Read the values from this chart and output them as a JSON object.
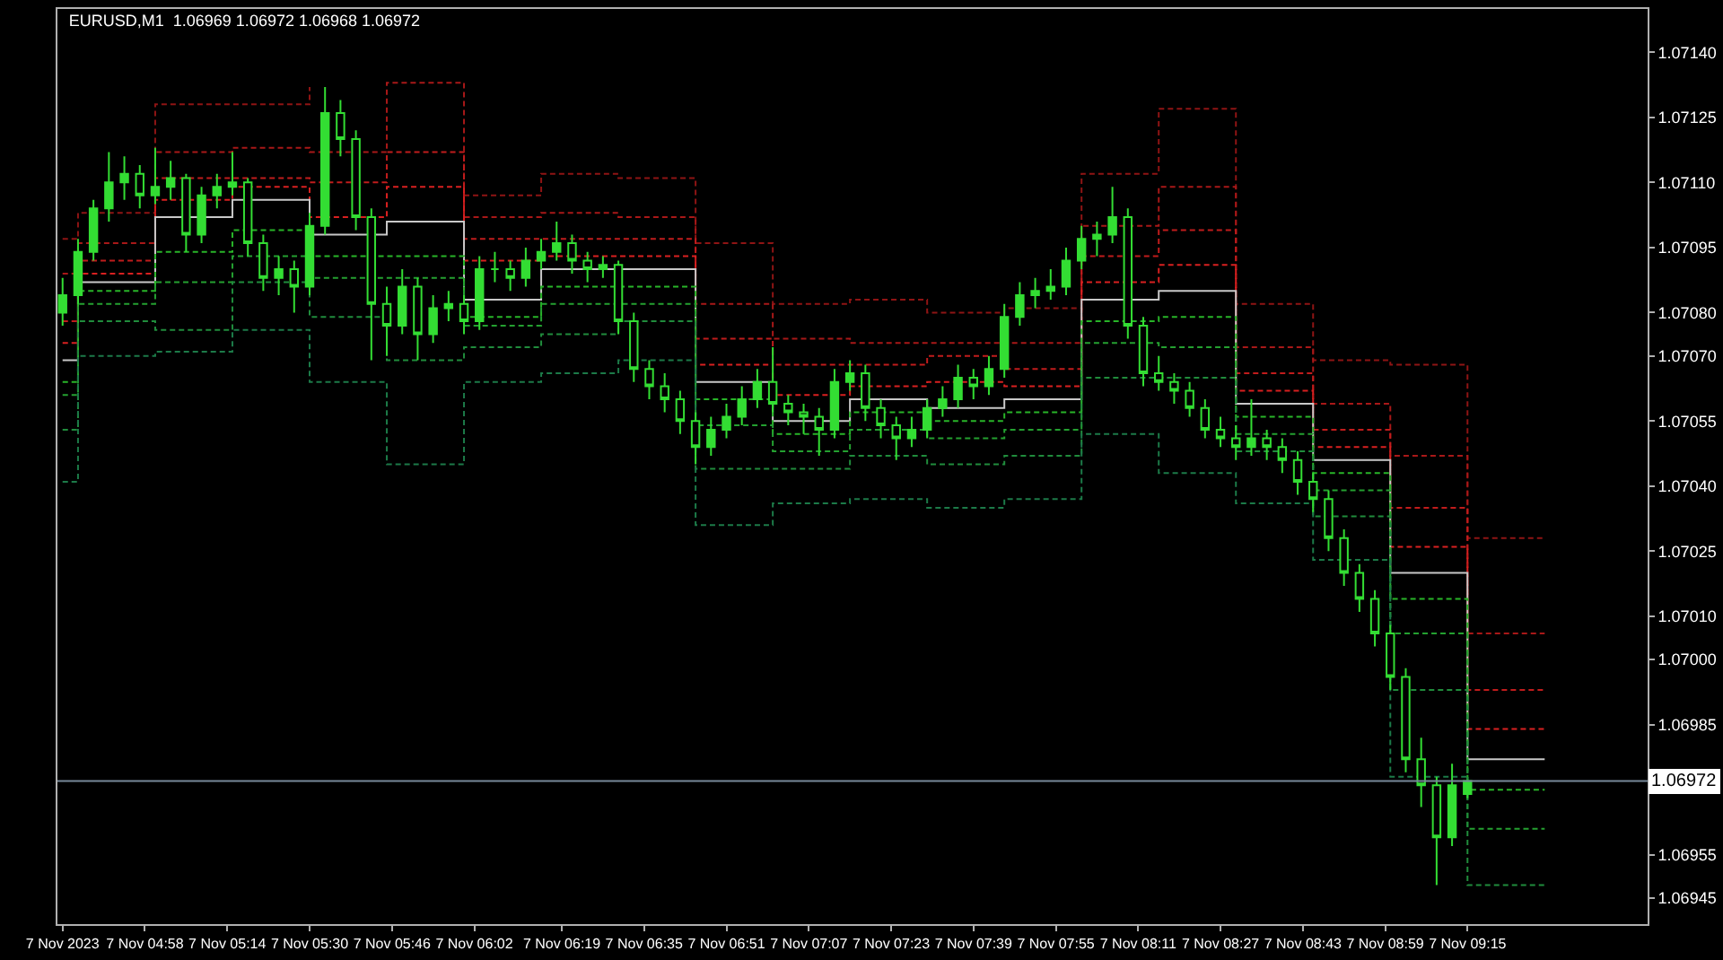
{
  "chart_data": {
    "type": "candlestick",
    "title": "EURUSD,M1  1.06969 1.06972 1.06968 1.06972",
    "color": "#33dd33",
    "x": [
      "2023-11-07T04:42",
      "2023-11-07T04:45",
      "2023-11-07T04:48",
      "2023-11-07T04:51",
      "2023-11-07T04:54",
      "2023-11-07T04:57",
      "2023-11-07T05:00",
      "2023-11-07T05:03",
      "2023-11-07T05:06",
      "2023-11-07T05:09",
      "2023-11-07T05:12",
      "2023-11-07T05:15",
      "2023-11-07T05:18",
      "2023-11-07T05:21",
      "2023-11-07T05:24",
      "2023-11-07T05:27",
      "2023-11-07T05:30",
      "2023-11-07T05:33",
      "2023-11-07T05:36",
      "2023-11-07T05:39",
      "2023-11-07T05:42",
      "2023-11-07T05:45",
      "2023-11-07T05:48",
      "2023-11-07T05:51",
      "2023-11-07T05:54",
      "2023-11-07T05:57",
      "2023-11-07T06:00",
      "2023-11-07T06:03",
      "2023-11-07T06:06",
      "2023-11-07T06:09",
      "2023-11-07T06:12",
      "2023-11-07T06:15",
      "2023-11-07T06:18",
      "2023-11-07T06:21",
      "2023-11-07T06:24",
      "2023-11-07T06:27",
      "2023-11-07T06:30",
      "2023-11-07T06:33",
      "2023-11-07T06:36",
      "2023-11-07T06:39",
      "2023-11-07T06:42",
      "2023-11-07T06:45",
      "2023-11-07T06:48",
      "2023-11-07T06:51",
      "2023-11-07T06:54",
      "2023-11-07T06:57",
      "2023-11-07T07:00",
      "2023-11-07T07:03",
      "2023-11-07T07:06",
      "2023-11-07T07:09",
      "2023-11-07T07:12",
      "2023-11-07T07:15",
      "2023-11-07T07:18",
      "2023-11-07T07:21",
      "2023-11-07T07:24",
      "2023-11-07T07:27",
      "2023-11-07T07:30",
      "2023-11-07T07:33",
      "2023-11-07T07:36",
      "2023-11-07T07:39",
      "2023-11-07T07:42",
      "2023-11-07T07:45",
      "2023-11-07T07:48",
      "2023-11-07T07:51",
      "2023-11-07T07:54",
      "2023-11-07T07:57",
      "2023-11-07T08:00",
      "2023-11-07T08:03",
      "2023-11-07T08:06",
      "2023-11-07T08:09",
      "2023-11-07T08:12",
      "2023-11-07T08:15",
      "2023-11-07T08:18",
      "2023-11-07T08:21",
      "2023-11-07T08:24",
      "2023-11-07T08:27",
      "2023-11-07T08:30",
      "2023-11-07T08:33",
      "2023-11-07T08:36",
      "2023-11-07T08:39",
      "2023-11-07T08:42",
      "2023-11-07T08:45",
      "2023-11-07T08:48",
      "2023-11-07T08:51",
      "2023-11-07T08:54",
      "2023-11-07T08:57",
      "2023-11-07T09:00",
      "2023-11-07T09:03",
      "2023-11-07T09:06",
      "2023-11-07T09:09",
      "2023-11-07T09:12",
      "2023-11-07T09:15"
    ],
    "ohlc": [
      [
        1.0708,
        1.07088,
        1.07077,
        1.07084
      ],
      [
        1.07084,
        1.07097,
        1.07082,
        1.07094
      ],
      [
        1.07094,
        1.07106,
        1.07092,
        1.07104
      ],
      [
        1.07104,
        1.07117,
        1.07101,
        1.0711
      ],
      [
        1.0711,
        1.07116,
        1.07106,
        1.07112
      ],
      [
        1.07112,
        1.07114,
        1.07104,
        1.07107
      ],
      [
        1.07107,
        1.07118,
        1.07105,
        1.07109
      ],
      [
        1.07109,
        1.07115,
        1.07106,
        1.07111
      ],
      [
        1.07111,
        1.07112,
        1.07094,
        1.07098
      ],
      [
        1.07098,
        1.07109,
        1.07096,
        1.07107
      ],
      [
        1.07107,
        1.07112,
        1.07104,
        1.07109
      ],
      [
        1.07109,
        1.07117,
        1.07107,
        1.0711
      ],
      [
        1.0711,
        1.07111,
        1.07093,
        1.07096
      ],
      [
        1.07096,
        1.07098,
        1.07085,
        1.07088
      ],
      [
        1.07088,
        1.07093,
        1.07084,
        1.0709
      ],
      [
        1.0709,
        1.07092,
        1.0708,
        1.07086
      ],
      [
        1.07086,
        1.07103,
        1.07084,
        1.071
      ],
      [
        1.071,
        1.07132,
        1.07098,
        1.07126
      ],
      [
        1.07126,
        1.07129,
        1.07116,
        1.0712
      ],
      [
        1.0712,
        1.07122,
        1.07099,
        1.07102
      ],
      [
        1.07102,
        1.07104,
        1.07069,
        1.07082
      ],
      [
        1.07082,
        1.07086,
        1.0707,
        1.07077
      ],
      [
        1.07077,
        1.0709,
        1.07075,
        1.07086
      ],
      [
        1.07086,
        1.07088,
        1.07069,
        1.07075
      ],
      [
        1.07075,
        1.07084,
        1.07073,
        1.07081
      ],
      [
        1.07081,
        1.07085,
        1.07078,
        1.07082
      ],
      [
        1.07082,
        1.07084,
        1.07075,
        1.07078
      ],
      [
        1.07078,
        1.07093,
        1.07076,
        1.0709
      ],
      [
        1.0709,
        1.07094,
        1.07087,
        1.0709
      ],
      [
        1.0709,
        1.07092,
        1.07085,
        1.07088
      ],
      [
        1.07088,
        1.07095,
        1.07086,
        1.07092
      ],
      [
        1.07092,
        1.07097,
        1.0709,
        1.07094
      ],
      [
        1.07094,
        1.07101,
        1.07092,
        1.07096
      ],
      [
        1.07096,
        1.07098,
        1.07089,
        1.07092
      ],
      [
        1.07092,
        1.07094,
        1.07087,
        1.0709
      ],
      [
        1.0709,
        1.07093,
        1.07088,
        1.07091
      ],
      [
        1.07091,
        1.07092,
        1.07075,
        1.07078
      ],
      [
        1.07078,
        1.0708,
        1.07064,
        1.07067
      ],
      [
        1.07067,
        1.07069,
        1.0706,
        1.07063
      ],
      [
        1.07063,
        1.07066,
        1.07057,
        1.0706
      ],
      [
        1.0706,
        1.07062,
        1.07052,
        1.07055
      ],
      [
        1.07055,
        1.07057,
        1.07045,
        1.07049
      ],
      [
        1.07049,
        1.07056,
        1.07047,
        1.07053
      ],
      [
        1.07053,
        1.07059,
        1.07051,
        1.07056
      ],
      [
        1.07056,
        1.07063,
        1.07054,
        1.0706
      ],
      [
        1.0706,
        1.07067,
        1.07058,
        1.07064
      ],
      [
        1.07064,
        1.07072,
        1.07057,
        1.07059
      ],
      [
        1.07059,
        1.07061,
        1.07054,
        1.07057
      ],
      [
        1.07057,
        1.07059,
        1.07052,
        1.07056
      ],
      [
        1.07056,
        1.07058,
        1.07047,
        1.07053
      ],
      [
        1.07053,
        1.07067,
        1.07051,
        1.07064
      ],
      [
        1.07064,
        1.07069,
        1.07062,
        1.07066
      ],
      [
        1.07066,
        1.07068,
        1.07055,
        1.07058
      ],
      [
        1.07058,
        1.0706,
        1.07051,
        1.07054
      ],
      [
        1.07054,
        1.07056,
        1.07046,
        1.07051
      ],
      [
        1.07051,
        1.07056,
        1.07049,
        1.07053
      ],
      [
        1.07053,
        1.0706,
        1.07051,
        1.07058
      ],
      [
        1.07058,
        1.07063,
        1.07056,
        1.0706
      ],
      [
        1.0706,
        1.07068,
        1.07058,
        1.07065
      ],
      [
        1.07065,
        1.07067,
        1.0706,
        1.07063
      ],
      [
        1.07063,
        1.0707,
        1.07061,
        1.07067
      ],
      [
        1.07067,
        1.07082,
        1.07065,
        1.07079
      ],
      [
        1.07079,
        1.07087,
        1.07077,
        1.07084
      ],
      [
        1.07084,
        1.07088,
        1.07081,
        1.07085
      ],
      [
        1.07085,
        1.0709,
        1.07083,
        1.07086
      ],
      [
        1.07086,
        1.07095,
        1.07084,
        1.07092
      ],
      [
        1.07092,
        1.071,
        1.0709,
        1.07097
      ],
      [
        1.07097,
        1.07101,
        1.07093,
        1.07098
      ],
      [
        1.07098,
        1.07109,
        1.07096,
        1.07102
      ],
      [
        1.07102,
        1.07104,
        1.07074,
        1.07077
      ],
      [
        1.07077,
        1.07079,
        1.07063,
        1.07066
      ],
      [
        1.07066,
        1.0707,
        1.07062,
        1.07064
      ],
      [
        1.07064,
        1.07066,
        1.07059,
        1.07062
      ],
      [
        1.07062,
        1.07064,
        1.07056,
        1.07058
      ],
      [
        1.07058,
        1.0706,
        1.07051,
        1.07053
      ],
      [
        1.07053,
        1.07056,
        1.07049,
        1.07051
      ],
      [
        1.07051,
        1.07054,
        1.07046,
        1.07049
      ],
      [
        1.07049,
        1.0706,
        1.07047,
        1.07051
      ],
      [
        1.07051,
        1.07053,
        1.07046,
        1.07049
      ],
      [
        1.07049,
        1.07051,
        1.07043,
        1.07046
      ],
      [
        1.07046,
        1.07048,
        1.07038,
        1.07041
      ],
      [
        1.07041,
        1.07043,
        1.07034,
        1.07037
      ],
      [
        1.07037,
        1.07039,
        1.07025,
        1.07028
      ],
      [
        1.07028,
        1.0703,
        1.07017,
        1.0702
      ],
      [
        1.0702,
        1.07022,
        1.07011,
        1.07014
      ],
      [
        1.07014,
        1.07016,
        1.07003,
        1.07006
      ],
      [
        1.07006,
        1.07008,
        1.06993,
        1.06996
      ],
      [
        1.06996,
        1.06998,
        1.06974,
        1.06977
      ],
      [
        1.06977,
        1.06982,
        1.06966,
        1.06971
      ],
      [
        1.06971,
        1.06973,
        1.06948,
        1.06959
      ],
      [
        1.06959,
        1.06976,
        1.06957,
        1.06971
      ],
      [
        1.06969,
        1.06972,
        1.06968,
        1.06972
      ]
    ],
    "series": [
      {
        "type": "step",
        "color": "#8e1414",
        "x": [
          "2023-11-07T04:42",
          "2023-11-07T04:45",
          "2023-11-07T05:00",
          "2023-11-07T05:15",
          "2023-11-07T05:30",
          "2023-11-07T05:45",
          "2023-11-07T06:00",
          "2023-11-07T06:15",
          "2023-11-07T06:30",
          "2023-11-07T06:45",
          "2023-11-07T07:00",
          "2023-11-07T07:15",
          "2023-11-07T07:30",
          "2023-11-07T07:45",
          "2023-11-07T08:00",
          "2023-11-07T08:15",
          "2023-11-07T08:30",
          "2023-11-07T08:45",
          "2023-11-07T09:00",
          "2023-11-07T09:15",
          "2023-11-07T09:30"
        ],
        "line_style": "dashed",
        "values": [
          1.07097,
          1.07103,
          1.07128,
          1.07128,
          1.07132,
          null,
          1.07107,
          1.07112,
          1.07111,
          1.07096,
          1.07082,
          1.07083,
          1.0708,
          1.07081,
          1.07112,
          1.07127,
          1.07082,
          1.07069,
          1.07068,
          1.07028,
          1.07028
        ]
      },
      {
        "type": "step",
        "color": "#a81818",
        "x": [
          "2023-11-07T04:42",
          "2023-11-07T04:45",
          "2023-11-07T05:00",
          "2023-11-07T05:15",
          "2023-11-07T05:30",
          "2023-11-07T05:45",
          "2023-11-07T06:00",
          "2023-11-07T06:15",
          "2023-11-07T06:30",
          "2023-11-07T06:45",
          "2023-11-07T07:00",
          "2023-11-07T07:15",
          "2023-11-07T07:30",
          "2023-11-07T07:45",
          "2023-11-07T08:00",
          "2023-11-07T08:15",
          "2023-11-07T08:30",
          "2023-11-07T08:45",
          "2023-11-07T09:00",
          "2023-11-07T09:15",
          "2023-11-07T09:30"
        ],
        "line_style": "dashed",
        "values": [
          1.07089,
          1.07096,
          1.07117,
          1.07118,
          1.07117,
          1.07133,
          1.07102,
          1.07103,
          1.07102,
          1.07082,
          1.07074,
          1.07073,
          1.07073,
          1.07073,
          1.071,
          1.07109,
          1.07072,
          1.07059,
          1.07047,
          1.07006,
          1.07006
        ]
      },
      {
        "type": "step",
        "color": "#c01c1c",
        "x": [
          "2023-11-07T04:42",
          "2023-11-07T04:45",
          "2023-11-07T05:00",
          "2023-11-07T05:15",
          "2023-11-07T05:30",
          "2023-11-07T05:45",
          "2023-11-07T06:00",
          "2023-11-07T06:15",
          "2023-11-07T06:30",
          "2023-11-07T06:45",
          "2023-11-07T07:00",
          "2023-11-07T07:15",
          "2023-11-07T07:30",
          "2023-11-07T07:45",
          "2023-11-07T08:00",
          "2023-11-07T08:15",
          "2023-11-07T08:30",
          "2023-11-07T08:45",
          "2023-11-07T09:00",
          "2023-11-07T09:15",
          "2023-11-07T09:30"
        ],
        "line_style": "dashed",
        "values": [
          1.07078,
          1.07092,
          1.07111,
          1.07111,
          1.0711,
          1.07117,
          1.07097,
          1.07097,
          1.07097,
          1.07074,
          1.07068,
          1.07068,
          1.0707,
          1.07067,
          1.07093,
          1.07099,
          1.07066,
          1.07053,
          1.07035,
          1.06993,
          1.06993
        ]
      },
      {
        "type": "step",
        "color": "#d82020",
        "x": [
          "2023-11-07T04:42",
          "2023-11-07T04:45",
          "2023-11-07T05:00",
          "2023-11-07T05:15",
          "2023-11-07T05:30",
          "2023-11-07T05:45",
          "2023-11-07T06:00",
          "2023-11-07T06:15",
          "2023-11-07T06:30",
          "2023-11-07T06:45",
          "2023-11-07T07:00",
          "2023-11-07T07:15",
          "2023-11-07T07:30",
          "2023-11-07T07:45",
          "2023-11-07T08:00",
          "2023-11-07T08:15",
          "2023-11-07T08:30",
          "2023-11-07T08:45",
          "2023-11-07T09:00",
          "2023-11-07T09:15",
          "2023-11-07T09:30"
        ],
        "line_style": "dashed",
        "values": [
          1.07073,
          1.07089,
          1.07106,
          1.07109,
          1.07102,
          1.07109,
          1.07092,
          1.07093,
          1.07093,
          1.07068,
          1.07061,
          1.07063,
          1.07064,
          1.07063,
          1.07087,
          1.07091,
          1.07062,
          1.07049,
          1.07026,
          1.06984,
          1.06984
        ]
      },
      {
        "type": "step",
        "color": "#c8c8c8",
        "x": [
          "2023-11-07T04:42",
          "2023-11-07T04:45",
          "2023-11-07T05:00",
          "2023-11-07T05:15",
          "2023-11-07T05:30",
          "2023-11-07T05:45",
          "2023-11-07T06:00",
          "2023-11-07T06:15",
          "2023-11-07T06:30",
          "2023-11-07T06:45",
          "2023-11-07T07:00",
          "2023-11-07T07:15",
          "2023-11-07T07:30",
          "2023-11-07T07:45",
          "2023-11-07T08:00",
          "2023-11-07T08:15",
          "2023-11-07T08:30",
          "2023-11-07T08:45",
          "2023-11-07T09:00",
          "2023-11-07T09:15",
          "2023-11-07T09:30"
        ],
        "line_style": "solid",
        "values": [
          1.07069,
          1.07087,
          1.07102,
          1.07106,
          1.07098,
          1.07101,
          1.07083,
          1.0709,
          1.0709,
          1.07064,
          1.07055,
          1.0706,
          1.07058,
          1.0706,
          1.07083,
          1.07085,
          1.07059,
          1.07046,
          1.0702,
          1.06977,
          1.06977
        ]
      },
      {
        "type": "step",
        "color": "#28b428",
        "x": [
          "2023-11-07T04:42",
          "2023-11-07T04:45",
          "2023-11-07T05:00",
          "2023-11-07T05:15",
          "2023-11-07T05:30",
          "2023-11-07T05:45",
          "2023-11-07T06:00",
          "2023-11-07T06:15",
          "2023-11-07T06:30",
          "2023-11-07T06:45",
          "2023-11-07T07:00",
          "2023-11-07T07:15",
          "2023-11-07T07:30",
          "2023-11-07T07:45",
          "2023-11-07T08:00",
          "2023-11-07T08:15",
          "2023-11-07T08:30",
          "2023-11-07T08:45",
          "2023-11-07T09:00",
          "2023-11-07T09:15",
          "2023-11-07T09:30"
        ],
        "line_style": "dashed",
        "values": [
          1.07064,
          1.07085,
          1.07094,
          1.07099,
          1.07093,
          1.07093,
          1.07079,
          1.07086,
          1.07086,
          1.0706,
          1.07052,
          1.07057,
          1.07055,
          1.07057,
          1.07078,
          1.07079,
          1.07056,
          1.07043,
          1.07014,
          1.0697,
          1.0697
        ]
      },
      {
        "type": "step",
        "color": "#24a030",
        "x": [
          "2023-11-07T04:42",
          "2023-11-07T04:45",
          "2023-11-07T05:00",
          "2023-11-07T05:15",
          "2023-11-07T05:30",
          "2023-11-07T05:45",
          "2023-11-07T06:00",
          "2023-11-07T06:15",
          "2023-11-07T06:30",
          "2023-11-07T06:45",
          "2023-11-07T07:00",
          "2023-11-07T07:15",
          "2023-11-07T07:30",
          "2023-11-07T07:45",
          "2023-11-07T08:00",
          "2023-11-07T08:15",
          "2023-11-07T08:30",
          "2023-11-07T08:45",
          "2023-11-07T09:00",
          "2023-11-07T09:15",
          "2023-11-07T09:30"
        ],
        "line_style": "dashed",
        "values": [
          1.07061,
          1.07082,
          1.07087,
          1.07093,
          1.07088,
          1.07088,
          1.07077,
          1.07082,
          1.07082,
          1.07054,
          1.07048,
          1.07053,
          1.07051,
          1.07053,
          1.07073,
          1.07072,
          1.07052,
          1.07039,
          1.07006,
          1.06961,
          1.06961
        ]
      },
      {
        "type": "step",
        "color": "#208c3c",
        "x": [
          "2023-11-07T04:42",
          "2023-11-07T04:45",
          "2023-11-07T05:00",
          "2023-11-07T05:15",
          "2023-11-07T05:30",
          "2023-11-07T05:45",
          "2023-11-07T06:00",
          "2023-11-07T06:15",
          "2023-11-07T06:30",
          "2023-11-07T06:45",
          "2023-11-07T07:00",
          "2023-11-07T07:15",
          "2023-11-07T07:30",
          "2023-11-07T07:45",
          "2023-11-07T08:00",
          "2023-11-07T08:15",
          "2023-11-07T08:30",
          "2023-11-07T08:45",
          "2023-11-07T09:00",
          "2023-11-07T09:15",
          "2023-11-07T09:30"
        ],
        "line_style": "dashed",
        "values": [
          1.07053,
          1.07078,
          1.07076,
          1.07087,
          1.07079,
          1.07069,
          1.07072,
          1.07075,
          1.07078,
          1.07044,
          1.07044,
          1.07047,
          1.07045,
          1.07047,
          1.07065,
          1.07065,
          1.07048,
          1.07033,
          1.06993,
          1.06948,
          1.06948
        ]
      },
      {
        "type": "step",
        "color": "#1c7a48",
        "x": [
          "2023-11-07T04:42",
          "2023-11-07T04:45",
          "2023-11-07T05:00",
          "2023-11-07T05:15",
          "2023-11-07T05:30",
          "2023-11-07T05:45",
          "2023-11-07T06:00",
          "2023-11-07T06:15",
          "2023-11-07T06:30",
          "2023-11-07T06:45",
          "2023-11-07T07:00",
          "2023-11-07T07:15",
          "2023-11-07T07:30",
          "2023-11-07T07:45",
          "2023-11-07T08:00",
          "2023-11-07T08:15",
          "2023-11-07T08:30",
          "2023-11-07T08:45",
          "2023-11-07T09:00",
          "2023-11-07T09:15"
        ],
        "line_style": "dashed",
        "values": [
          1.07041,
          1.0707,
          1.07071,
          1.07076,
          1.07064,
          1.07045,
          1.07064,
          1.07066,
          1.07069,
          1.07031,
          1.07036,
          1.07037,
          1.07035,
          1.07037,
          1.07052,
          1.07043,
          1.07036,
          1.07023,
          1.06973,
          1.06973
        ]
      }
    ],
    "xlim": [
      "2023-11-07T04:41",
      "2023-11-07T09:50"
    ],
    "xticks": [
      {
        "value": "2023-11-07T04:42",
        "label": "7 Nov 2023"
      },
      {
        "value": "2023-11-07T04:58",
        "label": "7 Nov 04:58"
      },
      {
        "value": "2023-11-07T05:14",
        "label": "7 Nov 05:14"
      },
      {
        "value": "2023-11-07T05:30",
        "label": "7 Nov 05:30"
      },
      {
        "value": "2023-11-07T05:46",
        "label": "7 Nov 05:46"
      },
      {
        "value": "2023-11-07T06:02",
        "label": "7 Nov 06:02"
      },
      {
        "value": "2023-11-07T06:19",
        "label": "7 Nov 06:19"
      },
      {
        "value": "2023-11-07T06:35",
        "label": "7 Nov 06:35"
      },
      {
        "value": "2023-11-07T06:51",
        "label": "7 Nov 06:51"
      },
      {
        "value": "2023-11-07T07:07",
        "label": "7 Nov 07:07"
      },
      {
        "value": "2023-11-07T07:23",
        "label": "7 Nov 07:23"
      },
      {
        "value": "2023-11-07T07:39",
        "label": "7 Nov 07:39"
      },
      {
        "value": "2023-11-07T07:55",
        "label": "7 Nov 07:55"
      },
      {
        "value": "2023-11-07T08:11",
        "label": "7 Nov 08:11"
      },
      {
        "value": "2023-11-07T08:27",
        "label": "7 Nov 08:27"
      },
      {
        "value": "2023-11-07T08:43",
        "label": "7 Nov 08:43"
      },
      {
        "value": "2023-11-07T08:59",
        "label": "7 Nov 08:59"
      },
      {
        "value": "2023-11-07T09:15",
        "label": "7 Nov 09:15"
      }
    ],
    "ylim": [
      1.06939,
      1.0715
    ],
    "yticks": [
      {
        "value": 1.0714,
        "label": "1.07140"
      },
      1.07125,
      {
        "value": 1.0711,
        "label": "1.07110"
      },
      1.07095,
      {
        "value": 1.0708,
        "label": "1.07080"
      },
      {
        "value": 1.0707,
        "label": "1.07070"
      },
      1.07055,
      {
        "value": 1.0704,
        "label": "1.07040"
      },
      1.07025,
      {
        "value": 1.0701,
        "label": "1.07010"
      },
      {
        "value": 1.07,
        "label": "1.07000"
      },
      1.06985,
      1.06955,
      1.06945
    ],
    "ref_lines": [
      {
        "axis": "y",
        "value": 1.06972,
        "label": "1.06972",
        "color": "#778899"
      }
    ],
    "grid": false
  }
}
